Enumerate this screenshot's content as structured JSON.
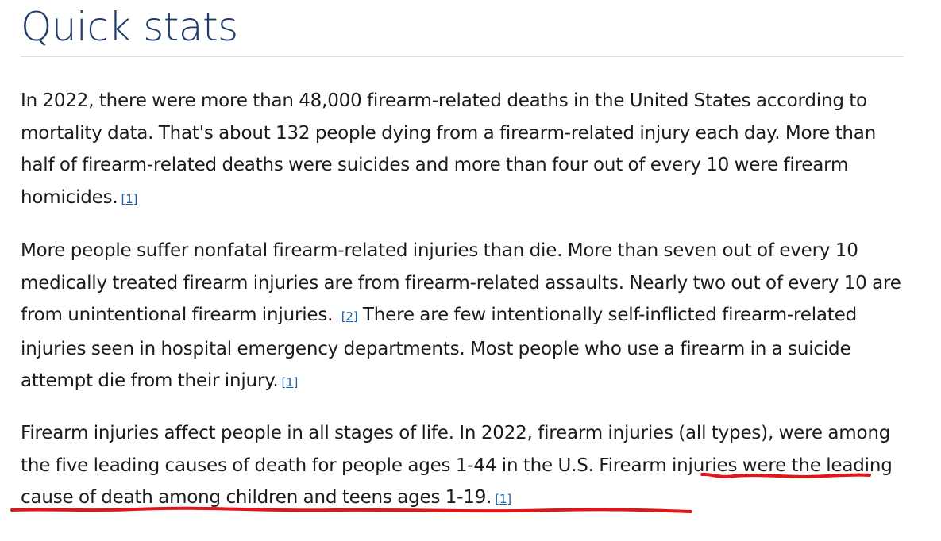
{
  "heading": "Quick stats",
  "paragraphs": [
    {
      "text": "In 2022, there were more than 48,000 firearm-related deaths in the United States according to mortality data. That's about 132 people dying from a firearm-related injury each day. More than half of firearm-related deaths were suicides and more than four out of every 10 were firearm homicides.",
      "cite": "[1]"
    },
    {
      "text_a": "More people suffer nonfatal firearm-related injuries than die. More than seven out of every 10 medically treated firearm injuries are from firearm-related assaults. Nearly two out of every 10 are from unintentional firearm injuries. ",
      "cite_a": "[2]",
      "text_b": "There are few intentionally self-inflicted firearm-related injuries seen in hospital emergency departments. Most people who use a firearm in a suicide attempt die from their injury.",
      "cite_b": "[1]"
    },
    {
      "text": "Firearm injuries affect people in all stages of life. In 2022, firearm injuries (all types), were among the five leading causes of death for people ages 1-44 in the U.S. Firearm injuries were the leading cause of death among children and teens ages 1-19.",
      "cite": "[1]"
    }
  ],
  "annotation": {
    "color": "#e0161b",
    "target_text": "Firearm injuries were the leading cause of death among children and teens ages 1-19."
  },
  "colors": {
    "heading": "#1f3d66",
    "body_text": "#1b1b1b",
    "link": "#1a5fa8",
    "rule": "#dedede"
  }
}
